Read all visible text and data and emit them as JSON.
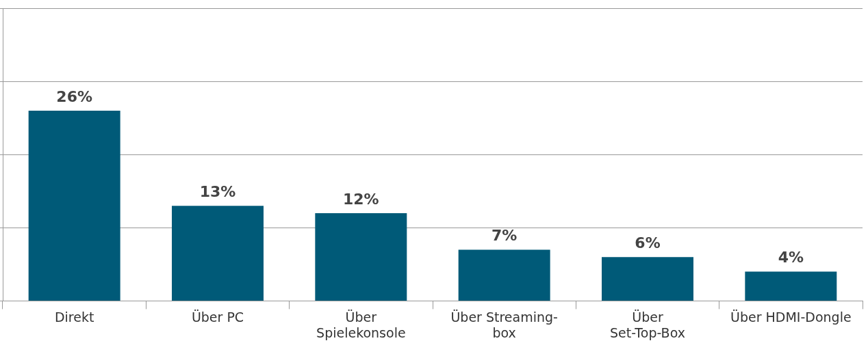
{
  "chart_data": {
    "type": "bar",
    "categories": [
      "Direkt",
      "Über PC",
      "Über\nSpielekonsole",
      "Über Streaming-\nbox",
      "Über\nSet-Top-Box",
      "Über HDMI-Dongle"
    ],
    "values": [
      26,
      13,
      12,
      7,
      6,
      4
    ],
    "value_labels": [
      "26%",
      "13%",
      "12%",
      "7%",
      "6%",
      "4%"
    ],
    "color": "#005a78",
    "ylim": [
      0,
      40
    ],
    "yticks": [
      {
        "value": 0,
        "label": null
      },
      {
        "value": 10,
        "label": null
      },
      {
        "value": 20,
        "label": null
      },
      {
        "value": 30,
        "label": null
      },
      {
        "value": 40,
        "label": null
      }
    ],
    "tick_labels": "x",
    "grid": "y",
    "legend": false
  }
}
